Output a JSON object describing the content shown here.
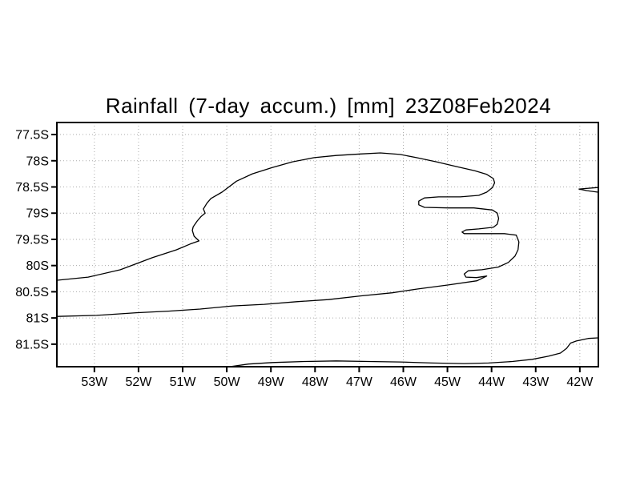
{
  "title": "Rainfall (7-day accum.) [mm] 23Z08Feb2024",
  "colors": {
    "contour": "#000000",
    "frame": "#000000",
    "grid": "#aaaaaa",
    "text": "#000000",
    "background": "#ffffff"
  },
  "chart_data": {
    "type": "heatmap",
    "subtype": "contour-map",
    "title": "Rainfall (7-day accum.) [mm] 23Z08Feb2024",
    "xlabel": "",
    "ylabel": "",
    "x_axis": {
      "unit": "degrees West",
      "range_lon_w": [
        53.85,
        41.58
      ],
      "ticks_lon_w": [
        53,
        52,
        51,
        50,
        49,
        48,
        47,
        46,
        45,
        44,
        43,
        42
      ],
      "tick_labels": [
        "53W",
        "52W",
        "51W",
        "50W",
        "49W",
        "48W",
        "47W",
        "46W",
        "45W",
        "44W",
        "43W",
        "42W"
      ]
    },
    "y_axis": {
      "unit": "degrees South",
      "range_lat_s": [
        77.27,
        81.93
      ],
      "ticks_lat_s": [
        77.5,
        78,
        78.5,
        79,
        79.5,
        80,
        80.5,
        81,
        81.5
      ],
      "tick_labels": [
        "77.5S",
        "78S",
        "78.5S",
        "79S",
        "79.5S",
        "80S",
        "80.5S",
        "81S",
        "81.5S"
      ]
    },
    "grid": {
      "on": true,
      "style": "dotted",
      "lon_step_deg": 1,
      "lat_step_deg": 0.5
    },
    "legend": {
      "visible": false
    },
    "contours": [
      {
        "name": "main-rainfall-contour",
        "closed": false,
        "points_lon_lat": [
          [
            53.84,
            80.28
          ],
          [
            53.14,
            80.22
          ],
          [
            52.41,
            80.08
          ],
          [
            51.69,
            79.85
          ],
          [
            51.14,
            79.7
          ],
          [
            50.83,
            79.59
          ],
          [
            50.63,
            79.53
          ],
          [
            50.74,
            79.44
          ],
          [
            50.78,
            79.33
          ],
          [
            50.76,
            79.26
          ],
          [
            50.67,
            79.15
          ],
          [
            50.58,
            79.06
          ],
          [
            50.49,
            79.0
          ],
          [
            50.53,
            78.92
          ],
          [
            50.45,
            78.81
          ],
          [
            50.36,
            78.72
          ],
          [
            50.11,
            78.6
          ],
          [
            49.78,
            78.39
          ],
          [
            49.42,
            78.25
          ],
          [
            48.97,
            78.13
          ],
          [
            48.51,
            78.02
          ],
          [
            48.02,
            77.94
          ],
          [
            47.52,
            77.9
          ],
          [
            46.97,
            77.87
          ],
          [
            46.52,
            77.85
          ],
          [
            46.07,
            77.88
          ],
          [
            45.7,
            77.94
          ],
          [
            45.25,
            78.02
          ],
          [
            44.8,
            78.11
          ],
          [
            44.38,
            78.19
          ],
          [
            44.11,
            78.26
          ],
          [
            43.96,
            78.34
          ],
          [
            43.93,
            78.42
          ],
          [
            43.98,
            78.51
          ],
          [
            44.11,
            78.6
          ],
          [
            44.29,
            78.66
          ],
          [
            44.71,
            78.69
          ],
          [
            45.2,
            78.69
          ],
          [
            45.52,
            78.71
          ],
          [
            45.65,
            78.77
          ],
          [
            45.65,
            78.84
          ],
          [
            45.52,
            78.89
          ],
          [
            44.98,
            78.9
          ],
          [
            44.4,
            78.9
          ],
          [
            43.98,
            78.94
          ],
          [
            43.87,
            79.0
          ],
          [
            43.84,
            79.1
          ],
          [
            43.87,
            79.21
          ],
          [
            43.96,
            79.27
          ],
          [
            44.29,
            79.3
          ],
          [
            44.58,
            79.32
          ],
          [
            44.67,
            79.36
          ],
          [
            44.62,
            79.39
          ],
          [
            44.16,
            79.39
          ],
          [
            43.71,
            79.39
          ],
          [
            43.44,
            79.42
          ],
          [
            43.38,
            79.55
          ],
          [
            43.4,
            79.7
          ],
          [
            43.47,
            79.82
          ],
          [
            43.62,
            79.94
          ],
          [
            43.85,
            80.03
          ],
          [
            44.22,
            80.08
          ],
          [
            44.53,
            80.1
          ],
          [
            44.62,
            80.16
          ],
          [
            44.58,
            80.22
          ],
          [
            44.34,
            80.23
          ],
          [
            44.11,
            80.2
          ],
          [
            44.33,
            80.29
          ],
          [
            44.98,
            80.37
          ],
          [
            45.7,
            80.45
          ],
          [
            46.25,
            80.52
          ],
          [
            46.97,
            80.58
          ],
          [
            47.7,
            80.65
          ],
          [
            48.42,
            80.69
          ],
          [
            49.15,
            80.74
          ],
          [
            49.87,
            80.77
          ],
          [
            50.6,
            80.83
          ],
          [
            51.32,
            80.87
          ],
          [
            52.05,
            80.9
          ],
          [
            52.95,
            80.95
          ],
          [
            53.84,
            80.97
          ]
        ]
      },
      {
        "name": "right-edge-sliver-contour",
        "closed": false,
        "points_lon_lat": [
          [
            41.59,
            78.51
          ],
          [
            42.02,
            78.54
          ],
          [
            41.84,
            78.57
          ],
          [
            41.59,
            78.6
          ]
        ]
      },
      {
        "name": "bottom-contour",
        "closed": false,
        "points_lon_lat": [
          [
            49.93,
            81.93
          ],
          [
            49.51,
            81.88
          ],
          [
            48.97,
            81.85
          ],
          [
            48.24,
            81.83
          ],
          [
            47.52,
            81.82
          ],
          [
            46.79,
            81.83
          ],
          [
            46.07,
            81.84
          ],
          [
            45.34,
            81.86
          ],
          [
            44.62,
            81.87
          ],
          [
            44.07,
            81.86
          ],
          [
            43.53,
            81.83
          ],
          [
            43.08,
            81.79
          ],
          [
            42.71,
            81.73
          ],
          [
            42.44,
            81.67
          ],
          [
            42.3,
            81.58
          ],
          [
            42.21,
            81.48
          ],
          [
            42.08,
            81.44
          ],
          [
            41.81,
            81.39
          ],
          [
            41.59,
            81.38
          ]
        ]
      }
    ]
  }
}
